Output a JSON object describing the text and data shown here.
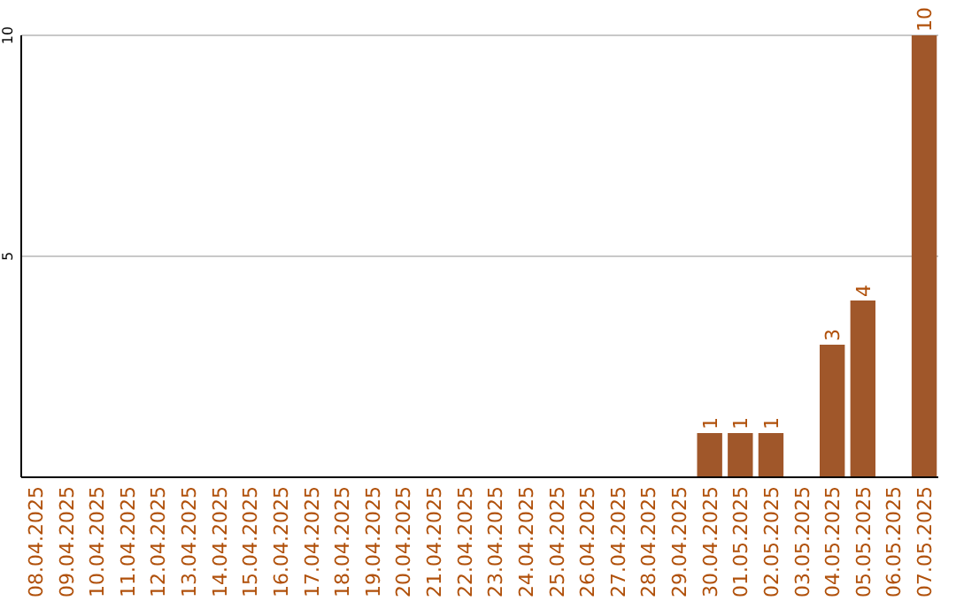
{
  "chart_data": {
    "type": "bar",
    "categories": [
      "08.04.2025",
      "09.04.2025",
      "10.04.2025",
      "11.04.2025",
      "12.04.2025",
      "13.04.2025",
      "14.04.2025",
      "15.04.2025",
      "16.04.2025",
      "17.04.2025",
      "18.04.2025",
      "19.04.2025",
      "20.04.2025",
      "21.04.2025",
      "22.04.2025",
      "23.04.2025",
      "24.04.2025",
      "25.04.2025",
      "26.04.2025",
      "27.04.2025",
      "28.04.2025",
      "29.04.2025",
      "30.04.2025",
      "01.05.2025",
      "02.05.2025",
      "03.05.2025",
      "04.05.2025",
      "05.05.2025",
      "06.05.2025",
      "07.05.2025"
    ],
    "values": [
      0,
      0,
      0,
      0,
      0,
      0,
      0,
      0,
      0,
      0,
      0,
      0,
      0,
      0,
      0,
      0,
      0,
      0,
      0,
      0,
      0,
      0,
      1,
      1,
      1,
      0,
      3,
      4,
      0,
      10
    ],
    "value_labels": [
      null,
      null,
      null,
      null,
      null,
      null,
      null,
      null,
      null,
      null,
      null,
      null,
      null,
      null,
      null,
      null,
      null,
      null,
      null,
      null,
      null,
      null,
      "1",
      "1",
      "1",
      null,
      "3",
      "4",
      null,
      "10"
    ],
    "color": "#a0572a",
    "ylim": [
      0,
      10
    ],
    "yticks": [
      5,
      10
    ],
    "grid": "y"
  }
}
